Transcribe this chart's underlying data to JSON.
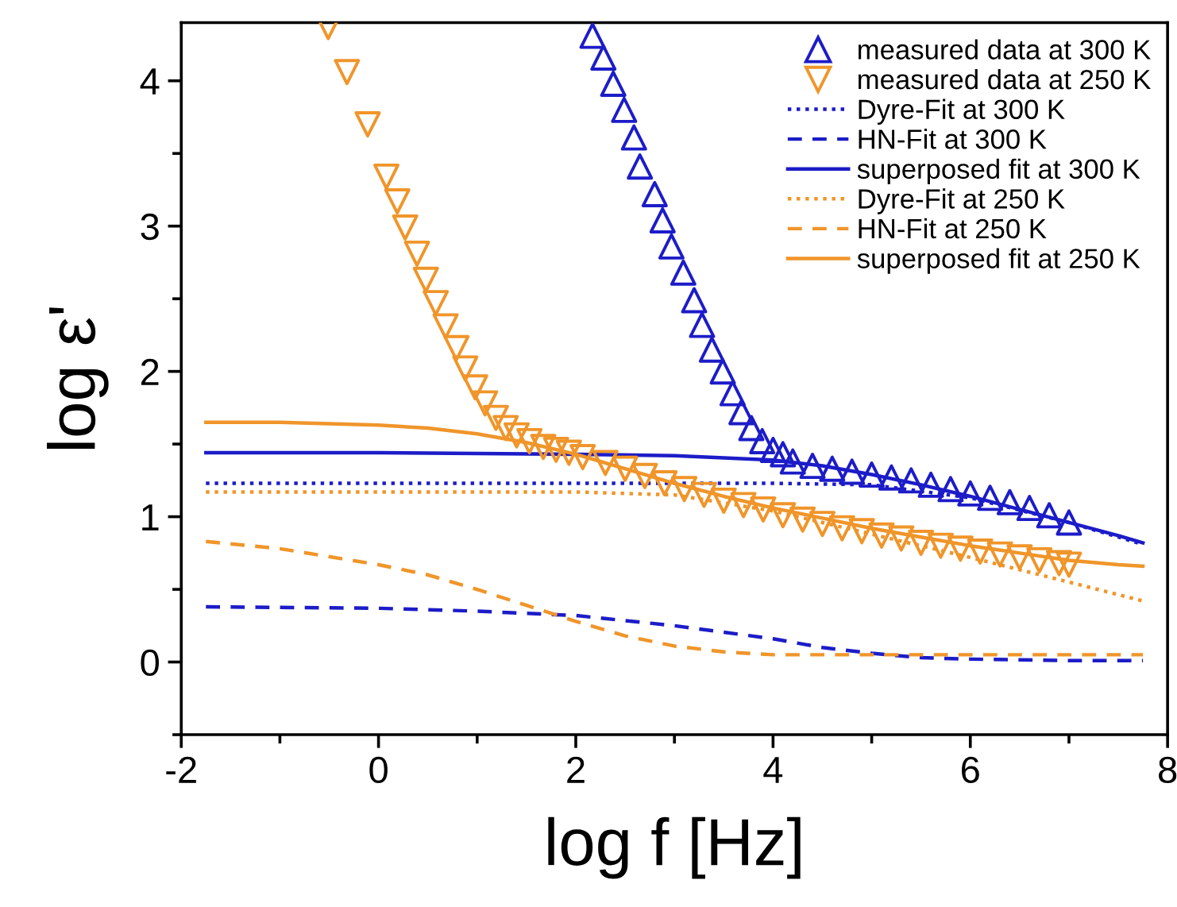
{
  "chart_data": {
    "type": "line",
    "xlabel": "log f [Hz]",
    "ylabel": "log ε'",
    "xlim": [
      -2,
      8
    ],
    "ylim": [
      -0.5,
      4.4
    ],
    "xticks": [
      -2,
      {
        "value": -1,
        "label": null
      },
      0,
      {
        "value": 1,
        "label": null
      },
      2,
      {
        "value": 3,
        "label": null
      },
      4,
      {
        "value": 5,
        "label": null
      },
      6,
      {
        "value": 7,
        "label": null
      },
      8
    ],
    "yticks": [
      {
        "value": -0.5,
        "label": null
      },
      0,
      {
        "value": 0.5,
        "label": null
      },
      1,
      {
        "value": 1.5,
        "label": null
      },
      2,
      {
        "value": 2.5,
        "label": null
      },
      3,
      {
        "value": 3.5,
        "label": null
      },
      4
    ],
    "legend": "top right",
    "grid": false,
    "series": [
      {
        "name": "measured data at 300 K",
        "type": "scatter",
        "marker": "triangle",
        "color": "#1c1cc8",
        "x": [
          2.17,
          2.28,
          2.38,
          2.49,
          2.59,
          2.65,
          2.8,
          2.88,
          2.97,
          3.09,
          3.2,
          3.28,
          3.38,
          3.49,
          3.59,
          3.68,
          3.78,
          3.89,
          4.0,
          4.1,
          4.2,
          4.4,
          4.6,
          4.8,
          5.0,
          5.2,
          5.4,
          5.6,
          5.8,
          6.0,
          6.2,
          6.4,
          6.6,
          6.8,
          7.0
        ],
        "values": [
          4.31,
          4.16,
          3.98,
          3.8,
          3.61,
          3.41,
          3.22,
          3.04,
          2.86,
          2.68,
          2.49,
          2.32,
          2.15,
          2.0,
          1.85,
          1.72,
          1.61,
          1.52,
          1.46,
          1.43,
          1.38,
          1.35,
          1.33,
          1.31,
          1.29,
          1.27,
          1.25,
          1.22,
          1.19,
          1.16,
          1.13,
          1.1,
          1.06,
          1.01,
          0.96
        ]
      },
      {
        "name": "measured data at 250 K",
        "type": "scatter",
        "marker": "triangle_down",
        "color": "#f0952a",
        "x": [
          -0.51,
          -0.32,
          -0.11,
          0.08,
          0.19,
          0.27,
          0.39,
          0.48,
          0.58,
          0.68,
          0.79,
          0.88,
          0.98,
          1.08,
          1.19,
          1.29,
          1.4,
          1.53,
          1.67,
          1.8,
          1.93,
          2.07,
          2.3,
          2.5,
          2.7,
          2.9,
          3.1,
          3.3,
          3.5,
          3.7,
          3.9,
          4.1,
          4.3,
          4.5,
          4.7,
          4.9,
          5.1,
          5.3,
          5.5,
          5.7,
          5.9,
          6.1,
          6.3,
          6.5,
          6.7,
          6.9,
          7.0
        ],
        "values": [
          4.37,
          4.06,
          3.7,
          3.34,
          3.17,
          2.99,
          2.81,
          2.63,
          2.47,
          2.31,
          2.16,
          2.02,
          1.89,
          1.78,
          1.68,
          1.61,
          1.56,
          1.52,
          1.48,
          1.46,
          1.44,
          1.41,
          1.37,
          1.33,
          1.28,
          1.23,
          1.19,
          1.15,
          1.11,
          1.08,
          1.05,
          1.01,
          0.98,
          0.95,
          0.92,
          0.9,
          0.87,
          0.85,
          0.82,
          0.8,
          0.78,
          0.76,
          0.74,
          0.72,
          0.7,
          0.68,
          0.67
        ]
      },
      {
        "name": "Dyre-Fit at 300 K",
        "line_style": "dotted",
        "color": "#1c1cc8",
        "x": [
          -1.75,
          4,
          5,
          6,
          7,
          7.75
        ],
        "values": [
          1.23,
          1.23,
          1.22,
          1.13,
          0.96,
          0.81
        ]
      },
      {
        "name": "HN-Fit at 300 K",
        "line_style": "dashed",
        "color": "#1c1cc8",
        "x": [
          -1.75,
          0,
          1,
          2,
          3,
          4,
          4.5,
          5,
          5.5,
          6,
          7,
          7.75
        ],
        "values": [
          0.38,
          0.37,
          0.35,
          0.32,
          0.25,
          0.16,
          0.1,
          0.06,
          0.03,
          0.02,
          0.01,
          0.01
        ]
      },
      {
        "name": "superposed fit at 300 K",
        "line_style": "solid",
        "color": "#1c1cc8",
        "x": [
          -1.75,
          0,
          2,
          3,
          4,
          4.5,
          5,
          5.5,
          6,
          6.5,
          7,
          7.5,
          7.75
        ],
        "values": [
          1.44,
          1.44,
          1.43,
          1.42,
          1.39,
          1.35,
          1.29,
          1.22,
          1.14,
          1.05,
          0.96,
          0.87,
          0.82
        ]
      },
      {
        "name": "Dyre-Fit at 250 K",
        "line_style": "dotted",
        "color": "#f0952a",
        "x": [
          -1.75,
          2,
          3,
          4,
          5,
          6,
          7,
          7.75
        ],
        "values": [
          1.17,
          1.17,
          1.15,
          1.04,
          0.88,
          0.72,
          0.55,
          0.42
        ]
      },
      {
        "name": "HN-Fit at 250 K",
        "line_style": "dashed",
        "color": "#f0952a",
        "x": [
          -1.75,
          -1,
          0,
          0.5,
          1,
          1.5,
          2,
          2.5,
          3,
          3.5,
          4,
          5,
          6,
          7.75
        ],
        "values": [
          0.83,
          0.78,
          0.67,
          0.6,
          0.5,
          0.39,
          0.28,
          0.18,
          0.11,
          0.07,
          0.05,
          0.05,
          0.05,
          0.05
        ]
      },
      {
        "name": "superposed fit at 250 K",
        "line_style": "solid",
        "color": "#f0952a",
        "x": [
          -1.75,
          -1,
          0,
          0.5,
          1,
          1.5,
          2,
          2.5,
          3,
          3.5,
          4,
          4.5,
          5,
          5.5,
          6,
          6.5,
          7,
          7.5,
          7.75
        ],
        "values": [
          1.65,
          1.65,
          1.63,
          1.61,
          1.57,
          1.51,
          1.43,
          1.33,
          1.23,
          1.14,
          1.06,
          0.99,
          0.92,
          0.86,
          0.8,
          0.75,
          0.7,
          0.67,
          0.66
        ]
      }
    ]
  }
}
